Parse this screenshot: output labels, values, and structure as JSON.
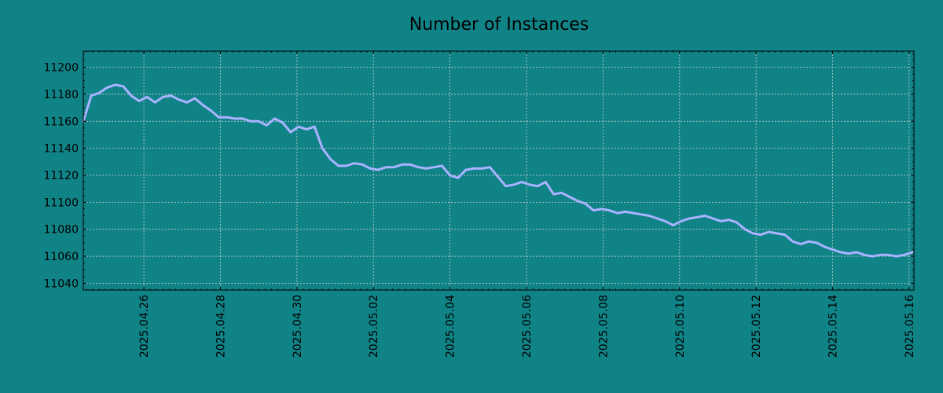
{
  "chart_data": {
    "type": "line",
    "title": "Number of Instances",
    "xlabel": "",
    "ylabel": "",
    "grid": true,
    "x_range": [
      "2025-04-24T10:00",
      "2025-05-16T03:00"
    ],
    "ylim": [
      11035,
      11212
    ],
    "y_ticks": [
      11040,
      11060,
      11080,
      11100,
      11120,
      11140,
      11160,
      11180,
      11200
    ],
    "x_ticks": [
      "2025.04.26",
      "2025.04.28",
      "2025.04.30",
      "2025.05.02",
      "2025.05.04",
      "2025.05.06",
      "2025.05.08",
      "2025.05.10",
      "2025.05.12",
      "2025.05.14",
      "2025.05.16"
    ],
    "colors": {
      "background": "#108387",
      "line": "#a9b3ff",
      "grid": "#bfcfcf",
      "axis": "#000000"
    },
    "series": [
      {
        "x": [
          "2025-04-24T10:00",
          "2025-04-24T15:00",
          "2025-04-24T20:00",
          "2025-04-25T01:00",
          "2025-04-25T06:00",
          "2025-04-25T11:00",
          "2025-04-25T16:00",
          "2025-04-25T21:00",
          "2025-04-26T02:00",
          "2025-04-26T07:00",
          "2025-04-26T12:00",
          "2025-04-26T17:00",
          "2025-04-26T22:00",
          "2025-04-27T03:00",
          "2025-04-27T08:00",
          "2025-04-27T13:00",
          "2025-04-27T18:00",
          "2025-04-27T23:00",
          "2025-04-28T04:00",
          "2025-04-28T09:00",
          "2025-04-28T14:00",
          "2025-04-28T19:00",
          "2025-04-29T00:00",
          "2025-04-29T05:00",
          "2025-04-29T10:00",
          "2025-04-29T15:00",
          "2025-04-29T20:00",
          "2025-04-30T01:00",
          "2025-04-30T06:00",
          "2025-04-30T11:00",
          "2025-04-30T16:00",
          "2025-04-30T21:00",
          "2025-05-01T02:00",
          "2025-05-01T07:00",
          "2025-05-01T12:00",
          "2025-05-01T17:00",
          "2025-05-01T22:00",
          "2025-05-02T03:00",
          "2025-05-02T08:00",
          "2025-05-02T13:00",
          "2025-05-02T18:00",
          "2025-05-02T23:00",
          "2025-05-03T04:00",
          "2025-05-03T09:00",
          "2025-05-03T14:00",
          "2025-05-03T19:00",
          "2025-05-04T00:00",
          "2025-05-04T05:00",
          "2025-05-04T10:00",
          "2025-05-04T15:00",
          "2025-05-04T20:00",
          "2025-05-05T01:00",
          "2025-05-05T06:00",
          "2025-05-05T11:00",
          "2025-05-05T16:00",
          "2025-05-05T21:00",
          "2025-05-06T02:00",
          "2025-05-06T07:00",
          "2025-05-06T12:00",
          "2025-05-06T17:00",
          "2025-05-06T22:00",
          "2025-05-07T03:00",
          "2025-05-07T08:00",
          "2025-05-07T13:00",
          "2025-05-07T18:00",
          "2025-05-07T23:00",
          "2025-05-08T04:00",
          "2025-05-08T09:00",
          "2025-05-08T14:00",
          "2025-05-08T19:00",
          "2025-05-09T00:00",
          "2025-05-09T05:00",
          "2025-05-09T10:00",
          "2025-05-09T15:00",
          "2025-05-09T20:00",
          "2025-05-10T01:00",
          "2025-05-10T06:00",
          "2025-05-10T11:00",
          "2025-05-10T16:00",
          "2025-05-10T21:00",
          "2025-05-11T02:00",
          "2025-05-11T07:00",
          "2025-05-11T12:00",
          "2025-05-11T17:00",
          "2025-05-11T22:00",
          "2025-05-12T03:00",
          "2025-05-12T08:00",
          "2025-05-12T13:00",
          "2025-05-12T18:00",
          "2025-05-12T23:00",
          "2025-05-13T04:00",
          "2025-05-13T09:00",
          "2025-05-13T14:00",
          "2025-05-13T19:00",
          "2025-05-14T00:00",
          "2025-05-14T05:00",
          "2025-05-14T10:00",
          "2025-05-14T15:00",
          "2025-05-14T20:00",
          "2025-05-15T01:00",
          "2025-05-15T06:00",
          "2025-05-15T11:00",
          "2025-05-15T16:00",
          "2025-05-15T21:00",
          "2025-05-16T02:00"
        ],
        "values": [
          11160,
          11179,
          11181,
          11185,
          11187,
          11186,
          11179,
          11175,
          11178,
          11174,
          11178,
          11179,
          11176,
          11174,
          11177,
          11172,
          11168,
          11163,
          11163,
          11162,
          11162,
          11160,
          11160,
          11157,
          11162,
          11159,
          11152,
          11156,
          11154,
          11156,
          11140,
          11132,
          11127,
          11127,
          11129,
          11128,
          11125,
          11124,
          11126,
          11126,
          11128,
          11128,
          11126,
          11125,
          11126,
          11127,
          11120,
          11118,
          11124,
          11125,
          11125,
          11126,
          11119,
          11112,
          11113,
          11115,
          11113,
          11112,
          11115,
          11106,
          11107,
          11104,
          11101,
          11099,
          11094,
          11095,
          11094,
          11092,
          11093,
          11092,
          11091,
          11090,
          11088,
          11086,
          11083,
          11086,
          11088,
          11089,
          11090,
          11088,
          11086,
          11087,
          11085,
          11080,
          11077,
          11076,
          11078,
          11077,
          11076,
          11071,
          11069,
          11071,
          11070,
          11067,
          11065,
          11063,
          11062,
          11063,
          11061,
          11060,
          11061,
          11061,
          11060,
          11061,
          11063
        ]
      }
    ]
  }
}
